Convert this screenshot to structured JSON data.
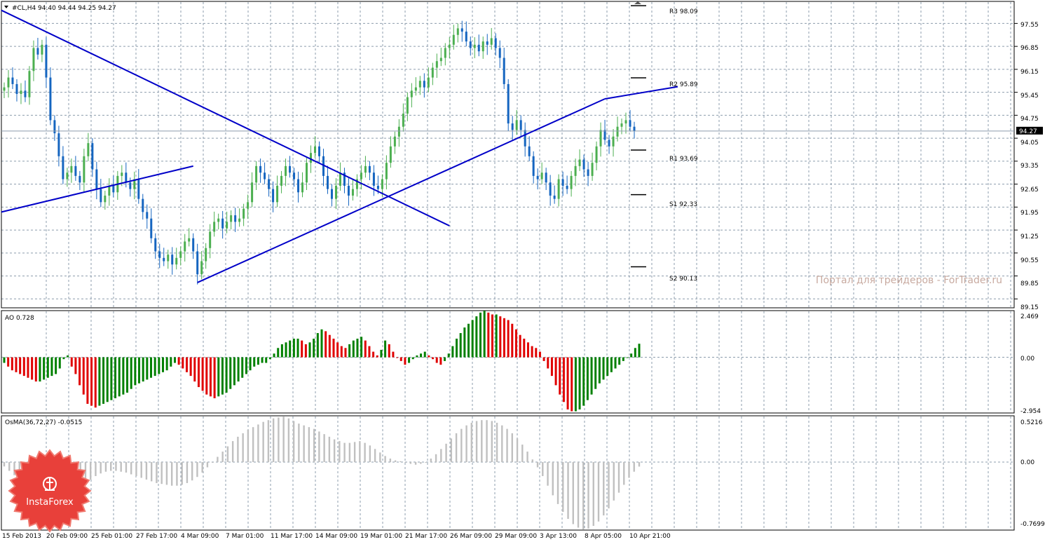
{
  "main_chart": {
    "info_label": "#CL,H4  94.40 94.44 94.25 94.27",
    "current_price": "94.27",
    "price_ticks": [
      "97.55",
      "96.85",
      "96.15",
      "95.45",
      "94.75",
      "94.05",
      "93.35",
      "92.65",
      "91.95",
      "91.25",
      "90.55",
      "89.85",
      "89.15"
    ],
    "pivot_labels": [
      "R3 98.09",
      "R2 95.89",
      "R1 93.69",
      "S1 92.33",
      "S2 90.13"
    ],
    "watermark": "Портал для трейдеров - ForTrader.ru"
  },
  "ao_panel": {
    "label": "AO 0.728",
    "ticks": [
      "2.469",
      "0.00",
      "-2.954"
    ]
  },
  "osma_panel": {
    "label": "OsMA(36,72,27) -0.0515",
    "ticks": [
      "0.5216",
      "0.00",
      "-0.7699"
    ]
  },
  "time_axis": {
    "labels": [
      "15 Feb 2013",
      "20 Feb 09:00",
      "25 Feb 01:00",
      "27 Feb 17:00",
      "4 Mar 09:00",
      "7 Mar 01:00",
      "11 Mar 17:00",
      "14 Mar 09:00",
      "19 Mar 01:00",
      "21 Mar 17:00",
      "26 Mar 09:00",
      "29 Mar 09:00",
      "3 Apr 13:00",
      "8 Apr 05:00",
      "10 Apr 21:00"
    ]
  },
  "logo": {
    "text": "InstaForex"
  },
  "colors": {
    "grid": "#8c9cac",
    "bull": "#4caf50",
    "bear": "#1565c0",
    "trendline": "#0000c8",
    "ao_up": "#008000",
    "ao_down": "#e00000",
    "osma": "#c0c0c0",
    "price_tag": "#000000",
    "logo": "#e8403a"
  },
  "chart_data": {
    "type": "candlestick",
    "main": {
      "ylim": [
        88.9,
        98.2
      ],
      "close": [
        95.6,
        95.9,
        95.7,
        95.4,
        95.5,
        95.3,
        96.1,
        96.8,
        96.6,
        96.9,
        95.9,
        94.6,
        94.2,
        93.5,
        92.8,
        93.0,
        93.2,
        92.9,
        92.7,
        93.5,
        93.9,
        93.1,
        92.5,
        92.1,
        92.3,
        92.6,
        92.4,
        92.9,
        93.0,
        92.7,
        92.5,
        92.8,
        92.2,
        91.8,
        91.6,
        91.0,
        90.6,
        90.4,
        90.3,
        90.5,
        90.2,
        90.4,
        90.6,
        90.9,
        91.0,
        90.6,
        89.9,
        90.3,
        90.7,
        91.2,
        91.5,
        91.6,
        91.3,
        91.5,
        91.7,
        91.5,
        91.6,
        91.9,
        92.1,
        92.7,
        93.2,
        93.0,
        92.8,
        92.5,
        92.1,
        92.6,
        92.9,
        93.2,
        93.0,
        92.8,
        92.4,
        92.7,
        93.3,
        93.6,
        93.8,
        93.5,
        92.9,
        92.5,
        92.2,
        92.6,
        93.0,
        92.6,
        92.3,
        92.5,
        92.8,
        93.0,
        93.2,
        93.0,
        92.6,
        92.5,
        92.8,
        93.3,
        93.8,
        94.1,
        94.4,
        94.8,
        95.3,
        95.5,
        95.6,
        95.8,
        95.6,
        95.9,
        96.2,
        96.4,
        96.5,
        96.8,
        96.9,
        97.2,
        97.4,
        97.3,
        97.0,
        96.8,
        96.9,
        96.7,
        97.0,
        96.9,
        97.1,
        96.8,
        96.5,
        95.7,
        94.5,
        94.3,
        94.6,
        94.3,
        93.8,
        93.5,
        92.9,
        92.8,
        93.0,
        92.7,
        92.3,
        92.2,
        92.8,
        92.6,
        92.5,
        92.9,
        93.2,
        93.4,
        93.1,
        92.9,
        93.3,
        93.8,
        94.3,
        94.0,
        93.8,
        94.1,
        94.4,
        94.5,
        94.6,
        94.4,
        94.27
      ],
      "trendlines": [
        {
          "from": [
            0,
            97.95
          ],
          "to": [
            106,
            91.38
          ]
        },
        {
          "from": [
            0,
            91.8
          ],
          "to": [
            45,
            93.2
          ]
        },
        {
          "from": [
            46,
            89.65
          ],
          "to": [
            143,
            95.25
          ]
        }
      ],
      "pivots": [
        98.09,
        95.89,
        93.69,
        92.33,
        90.13
      ]
    },
    "ao": {
      "ylim": [
        -2.954,
        2.469
      ],
      "values": [
        -0.3,
        -0.5,
        -0.7,
        -0.8,
        -0.9,
        -1.0,
        -1.1,
        -1.2,
        -1.3,
        -1.3,
        -1.2,
        -1.1,
        -1.0,
        -0.9,
        -0.6,
        -0.1,
        0.1,
        -0.5,
        -0.9,
        -1.5,
        -2.0,
        -2.5,
        -2.6,
        -2.7,
        -2.6,
        -2.5,
        -2.4,
        -2.3,
        -2.2,
        -2.1,
        -2.0,
        -1.9,
        -1.7,
        -1.5,
        -1.4,
        -1.3,
        -1.2,
        -1.1,
        -1.0,
        -0.9,
        -0.8,
        -0.7,
        -0.5,
        -0.3,
        -0.4,
        -0.6,
        -0.8,
        -1.0,
        -1.3,
        -1.6,
        -1.8,
        -2.0,
        -2.1,
        -2.2,
        -2.1,
        -2.0,
        -1.9,
        -1.7,
        -1.5,
        -1.3,
        -1.1,
        -0.9,
        -0.7,
        -0.5,
        -0.4,
        -0.3,
        -0.3,
        -0.1,
        0.2,
        0.5,
        0.7,
        0.8,
        0.9,
        1.0,
        1.0,
        0.9,
        0.7,
        0.8,
        1.0,
        1.3,
        1.5,
        1.4,
        1.2,
        1.0,
        0.8,
        0.6,
        0.5,
        0.7,
        0.9,
        1.0,
        1.1,
        0.9,
        0.6,
        0.3,
        0.1,
        0.4,
        0.9,
        0.7,
        0.3,
        0.0,
        -0.2,
        -0.4,
        -0.3,
        -0.1,
        0.1,
        0.2,
        0.3,
        0.1,
        -0.1,
        -0.3,
        -0.4,
        -0.2,
        0.2,
        0.6,
        1.0,
        1.3,
        1.6,
        1.8,
        2.0,
        2.2,
        2.4,
        2.5,
        2.4,
        2.3,
        2.3,
        2.2,
        2.1,
        2.0,
        1.8,
        1.5,
        1.2,
        1.0,
        0.8,
        0.6,
        0.5,
        0.3,
        -0.2,
        -0.6,
        -1.0,
        -1.5,
        -2.0,
        -2.4,
        -2.8,
        -2.9,
        -2.9,
        -2.8,
        -2.6,
        -2.3,
        -2.0,
        -1.7,
        -1.4,
        -1.2,
        -1.0,
        -0.8,
        -0.6,
        -0.4,
        -0.2,
        0.0,
        0.2,
        0.5,
        0.728
      ]
    },
    "osma": {
      "ylim": [
        -0.7699,
        0.5216
      ],
      "values": [
        -0.05,
        -0.1,
        -0.15,
        -0.2,
        -0.25,
        -0.3,
        -0.35,
        -0.4,
        -0.42,
        -0.44,
        -0.44,
        -0.42,
        -0.4,
        -0.36,
        -0.32,
        -0.28,
        -0.24,
        -0.2,
        -0.16,
        -0.13,
        -0.11,
        -0.1,
        -0.1,
        -0.11,
        -0.12,
        -0.14,
        -0.16,
        -0.18,
        -0.2,
        -0.22,
        -0.24,
        -0.25,
        -0.26,
        -0.27,
        -0.27,
        -0.26,
        -0.24,
        -0.21,
        -0.17,
        -0.12,
        -0.06,
        0.0,
        0.06,
        0.12,
        0.18,
        0.24,
        0.29,
        0.33,
        0.37,
        0.4,
        0.43,
        0.46,
        0.48,
        0.5,
        0.51,
        0.52,
        0.5,
        0.47,
        0.44,
        0.42,
        0.4,
        0.38,
        0.35,
        0.32,
        0.29,
        0.26,
        0.24,
        0.22,
        0.22,
        0.23,
        0.24,
        0.22,
        0.19,
        0.15,
        0.11,
        0.07,
        0.04,
        0.02,
        0.01,
        0.0,
        -0.02,
        -0.03,
        -0.02,
        0.0,
        0.04,
        0.09,
        0.15,
        0.21,
        0.27,
        0.33,
        0.38,
        0.42,
        0.45,
        0.47,
        0.48,
        0.48,
        0.47,
        0.45,
        0.42,
        0.38,
        0.33,
        0.27,
        0.2,
        0.12,
        0.03,
        -0.06,
        -0.16,
        -0.27,
        -0.38,
        -0.48,
        -0.57,
        -0.65,
        -0.71,
        -0.75,
        -0.77,
        -0.76,
        -0.73,
        -0.68,
        -0.61,
        -0.53,
        -0.44,
        -0.35,
        -0.26,
        -0.18,
        -0.11,
        -0.0515
      ]
    }
  }
}
